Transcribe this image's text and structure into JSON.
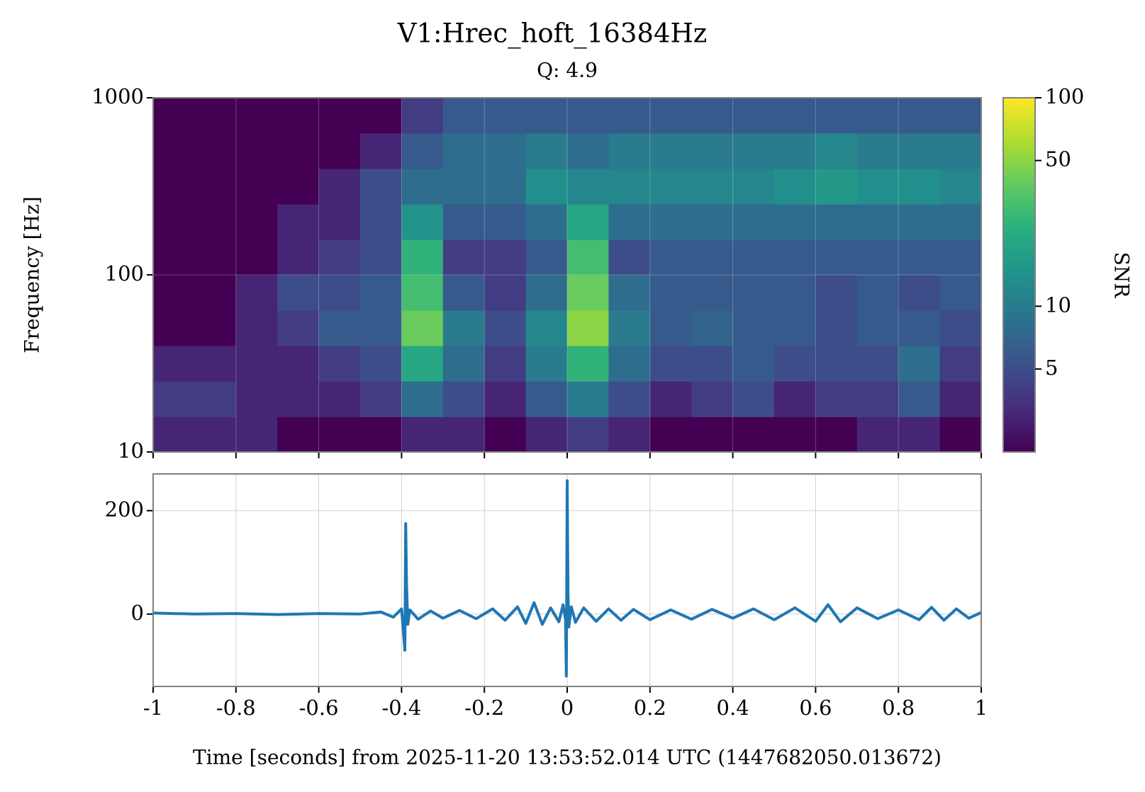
{
  "chart_data": [
    {
      "type": "heatmap",
      "title": "V1:Hrec_hoft_16384Hz",
      "subtitle": "Q: 4.9",
      "ylabel": "Frequency [Hz]",
      "x": [
        -1,
        -0.9,
        -0.8,
        -0.7,
        -0.6,
        -0.5,
        -0.4,
        -0.3,
        -0.2,
        -0.1,
        0,
        0.1,
        0.2,
        0.3,
        0.4,
        0.5,
        0.6,
        0.7,
        0.8,
        0.9,
        1
      ],
      "y": [
        10,
        15.8,
        25.1,
        39.8,
        63.1,
        100,
        158,
        251,
        398,
        631,
        1000
      ],
      "values": [
        [
          3,
          3,
          3,
          2,
          2,
          2,
          3,
          3,
          2,
          3,
          4,
          3,
          2,
          2,
          2,
          2,
          2,
          3,
          3,
          2
        ],
        [
          4,
          4,
          3,
          3,
          3,
          4,
          8,
          5,
          3,
          6,
          10,
          5,
          3,
          4,
          5,
          3,
          4,
          4,
          6,
          3
        ],
        [
          3,
          3,
          3,
          3,
          4,
          5,
          20,
          8,
          4,
          10,
          25,
          8,
          5,
          5,
          6,
          5,
          5,
          5,
          8,
          4
        ],
        [
          2,
          2,
          3,
          4,
          6,
          6,
          40,
          10,
          5,
          12,
          50,
          10,
          6,
          7,
          6,
          6,
          5,
          6,
          6,
          5
        ],
        [
          2,
          2,
          3,
          5,
          5,
          6,
          30,
          6,
          4,
          8,
          40,
          8,
          6,
          6,
          6,
          6,
          5,
          6,
          5,
          6
        ],
        [
          2,
          2,
          2,
          3,
          4,
          5,
          25,
          4,
          4,
          6,
          30,
          5,
          6,
          6,
          6,
          6,
          6,
          6,
          6,
          6
        ],
        [
          2,
          2,
          2,
          3,
          3,
          5,
          15,
          6,
          6,
          8,
          20,
          8,
          8,
          8,
          8,
          8,
          8,
          8,
          8,
          8
        ],
        [
          2,
          2,
          2,
          2,
          3,
          5,
          8,
          8,
          8,
          14,
          12,
          12,
          12,
          12,
          12,
          14,
          16,
          14,
          14,
          12
        ],
        [
          2,
          2,
          2,
          2,
          2,
          3,
          6,
          8,
          8,
          10,
          8,
          10,
          10,
          10,
          10,
          10,
          12,
          10,
          10,
          10
        ],
        [
          2,
          2,
          2,
          2,
          2,
          2,
          4,
          6,
          6,
          6,
          6,
          6,
          6,
          6,
          6,
          6,
          6,
          6,
          6,
          6
        ]
      ],
      "xlim": [
        -1,
        1
      ],
      "xticks": [
        -1,
        -0.8,
        -0.6,
        -0.4,
        -0.2,
        0,
        0.2,
        0.4,
        0.6,
        0.8,
        1
      ],
      "ylim": [
        10,
        1000
      ],
      "yticks": [
        10,
        100,
        1000
      ],
      "ylog": true,
      "grid": true,
      "colormap": "viridis",
      "colorbar": {
        "label": "SNR",
        "lim": [
          2,
          100
        ],
        "ticks": [
          5,
          10,
          50,
          100
        ],
        "log": true
      }
    },
    {
      "type": "line",
      "xlabel": "Time [seconds] from 2025-11-20 13:53:52.014 UTC (1447682050.013672)",
      "x": [
        -1,
        -0.9,
        -0.8,
        -0.7,
        -0.6,
        -0.5,
        -0.45,
        -0.42,
        -0.4,
        -0.395,
        -0.392,
        -0.39,
        -0.388,
        -0.385,
        -0.38,
        -0.36,
        -0.33,
        -0.3,
        -0.26,
        -0.22,
        -0.18,
        -0.15,
        -0.12,
        -0.1,
        -0.08,
        -0.06,
        -0.04,
        -0.02,
        -0.01,
        -0.004,
        -0.002,
        0,
        0.002,
        0.004,
        0.01,
        0.02,
        0.04,
        0.07,
        0.1,
        0.13,
        0.16,
        0.2,
        0.25,
        0.3,
        0.35,
        0.4,
        0.45,
        0.5,
        0.55,
        0.6,
        0.63,
        0.66,
        0.7,
        0.75,
        0.8,
        0.85,
        0.88,
        0.91,
        0.94,
        0.97,
        1
      ],
      "series": [
        {
          "color": "#1f77b4",
          "values": [
            2,
            0,
            1,
            -1,
            1,
            0,
            4,
            -6,
            10,
            -40,
            -70,
            175,
            60,
            -20,
            8,
            -10,
            6,
            -8,
            7,
            -9,
            10,
            -12,
            14,
            -18,
            22,
            -20,
            12,
            -15,
            18,
            -10,
            -120,
            258,
            40,
            -25,
            14,
            -16,
            12,
            -14,
            10,
            -12,
            9,
            -11,
            8,
            -10,
            9,
            -8,
            10,
            -11,
            12,
            -14,
            18,
            -15,
            12,
            -9,
            8,
            -11,
            13,
            -12,
            10,
            -8,
            3
          ]
        }
      ],
      "xlim": [
        -1,
        1
      ],
      "xticks": [
        -1,
        -0.8,
        -0.6,
        -0.4,
        -0.2,
        0,
        0.2,
        0.4,
        0.6,
        0.8,
        1
      ],
      "ylim": [
        -140,
        271
      ],
      "yticks": [
        0,
        200
      ],
      "grid": true
    }
  ]
}
